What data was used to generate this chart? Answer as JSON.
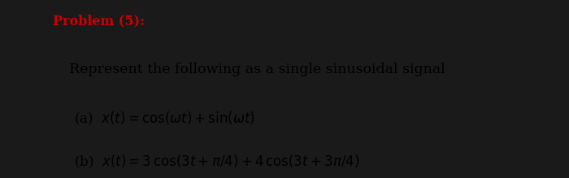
{
  "background_color": "#d8d8d8",
  "content_bg": "#e8e8e2",
  "left_bar1_color": "#1a1a1a",
  "left_bar2_color": "#2a2a2a",
  "title": "Problem (5):",
  "title_color": "#cc0000",
  "title_fontsize": 11.5,
  "subtitle": "Represent the following as a single sinusoidal signal",
  "subtitle_fontsize": 12.5,
  "line_a": "(a)  $x(t) = \\mathrm{cos}(\\omega t) + \\mathrm{sin}(\\omega t)$",
  "line_b": "(b)  $x(t) = 3\\,\\mathrm{cos}(3t + \\pi/4) + 4\\,\\mathrm{cos}(3t + 3\\pi/4)$",
  "lines_fontsize": 12.0,
  "fig_width": 7.0,
  "fig_height": 2.19,
  "dpi": 100
}
